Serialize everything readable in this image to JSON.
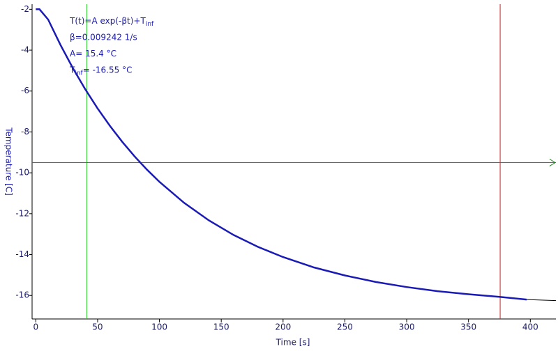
{
  "chart_data": {
    "type": "line",
    "x_label": "Time [s]",
    "y_label": "Temperature [C]",
    "xlim": [
      -3,
      420.7
    ],
    "ylim": [
      -17.15,
      -1.75
    ],
    "xticks": [
      0,
      50,
      100,
      150,
      200,
      250,
      300,
      350,
      400
    ],
    "yticks": [
      -2,
      -4,
      -6,
      -8,
      -10,
      -12,
      -14,
      -16
    ],
    "series": [
      {
        "color": "#1a1ab4",
        "x": [
          0,
          3,
          10,
          20,
          30,
          40,
          50,
          60,
          70,
          80,
          90,
          100,
          120,
          140,
          160,
          180,
          200,
          225,
          250,
          275,
          300,
          325,
          350,
          375,
          397
        ],
        "values": [
          -2.0,
          -2.0,
          -2.5,
          -3.75,
          -4.88,
          -5.91,
          -6.85,
          -7.71,
          -8.49,
          -9.2,
          -9.85,
          -10.44,
          -11.47,
          -12.33,
          -13.04,
          -13.63,
          -14.12,
          -14.63,
          -15.02,
          -15.34,
          -15.59,
          -15.79,
          -15.94,
          -16.07,
          -16.2
        ]
      },
      {
        "color": "#000000",
        "x": [
          397,
          420.7
        ],
        "values": [
          -16.2,
          -16.25
        ]
      }
    ],
    "cursors": {
      "vertical": [
        {
          "value": 41.2,
          "color": "#22cc22"
        },
        {
          "value": 375.6,
          "color": "#cc2222"
        }
      ],
      "horizontal": [
        {
          "value": -9.5,
          "color": "#228822"
        }
      ]
    },
    "annotations": [
      {
        "text": "T(t)=A exp(-βt)+T",
        "sub": "inf"
      },
      {
        "text": "β=0.009242 1/s"
      },
      {
        "text": "A= 15.4 °C"
      },
      {
        "text": "T",
        "sub": "inf",
        "rest": "= -16.55 °C"
      }
    ]
  }
}
